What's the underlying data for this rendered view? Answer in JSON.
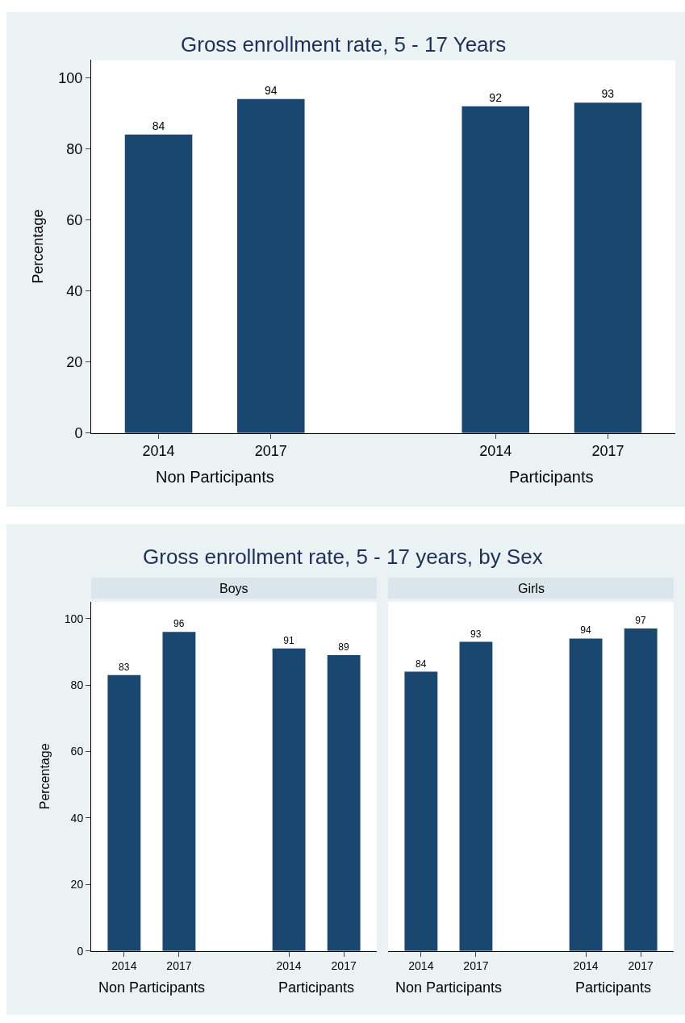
{
  "chart_data": [
    {
      "type": "bar",
      "title": "Gross enrollment rate, 5 - 17 Years",
      "ylabel": "Percentage",
      "categories": [
        "2014",
        "2017",
        null,
        "2014",
        "2017"
      ],
      "values": [
        84,
        94,
        null,
        92,
        93
      ],
      "color": "#1a476f",
      "ylim": [
        0,
        105
      ],
      "yticks": [
        0,
        20,
        40,
        60,
        80,
        100
      ],
      "grid": false,
      "data_labels": true,
      "annotations": [
        "Non Participants",
        "Participants"
      ]
    },
    {
      "type": "bar",
      "title": "Gross enrollment rate, 5 - 17 years, by Sex",
      "subtitle": "Boys",
      "ylabel": "Percentage",
      "categories": [
        "2014",
        "2017",
        null,
        "2014",
        "2017"
      ],
      "values": [
        83,
        96,
        null,
        91,
        89
      ],
      "color": "#1a476f",
      "ylim": [
        0,
        105
      ],
      "yticks": [
        0,
        20,
        40,
        60,
        80,
        100
      ],
      "grid": false,
      "data_labels": true,
      "annotations": [
        "Non Participants",
        "Participants"
      ]
    },
    {
      "type": "bar",
      "subtitle": "Girls",
      "categories": [
        "2014",
        "2017",
        null,
        "2014",
        "2017"
      ],
      "values": [
        84,
        93,
        null,
        94,
        97
      ],
      "color": "#1a476f",
      "ylim": [
        0,
        105
      ],
      "yticks": [
        0,
        20,
        40,
        60,
        80,
        100
      ],
      "grid": false,
      "data_labels": true,
      "tick_labels": "x",
      "annotations": [
        "Non Participants",
        "Participants"
      ]
    }
  ]
}
